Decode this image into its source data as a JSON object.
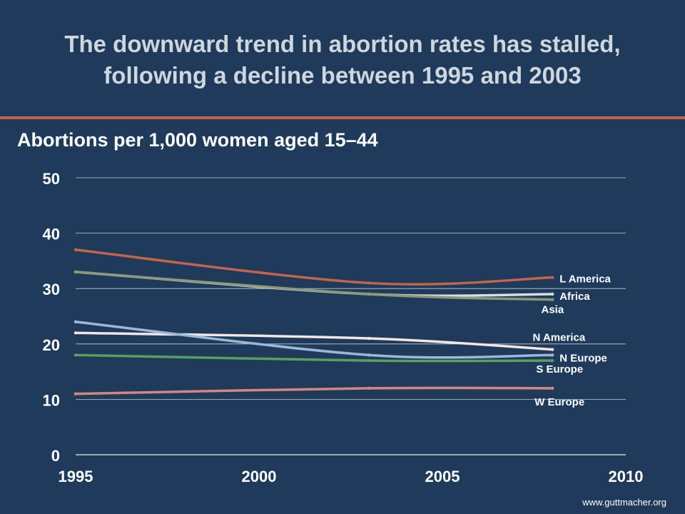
{
  "title": "The downward trend in abortion rates has stalled,\nfollowing a decline between 1995 and 2003",
  "subtitle": "Abortions per 1,000 women aged 15–44",
  "footer": "www.guttmacher.org",
  "colors": {
    "background": "#1f3a5a",
    "accent": "#c8624a"
  },
  "chart_data": {
    "type": "line",
    "xlim": [
      1995,
      2010
    ],
    "ylim": [
      0,
      50
    ],
    "xticks": [
      1995,
      2000,
      2005,
      2010
    ],
    "yticks": [
      0,
      10,
      20,
      30,
      40,
      50
    ],
    "x": [
      1995,
      2003,
      2008
    ],
    "grid": true,
    "series": [
      {
        "name": "L America",
        "values": [
          37,
          31,
          32
        ],
        "color": "#c8624a"
      },
      {
        "name": "Africa",
        "values": [
          33,
          29,
          29
        ],
        "color": "#d8dde4"
      },
      {
        "name": "Asia",
        "values": [
          33,
          29,
          28
        ],
        "color": "#8c9a78"
      },
      {
        "name": "N America",
        "values": [
          22,
          21,
          19
        ],
        "color": "#f2e6e6"
      },
      {
        "name": "N Europe",
        "values": [
          24,
          18,
          18
        ],
        "color": "#9bb8d8"
      },
      {
        "name": "S Europe",
        "values": [
          18,
          17,
          17
        ],
        "color": "#58a060"
      },
      {
        "name": "W Europe",
        "values": [
          11,
          12,
          12
        ],
        "color": "#d48680"
      }
    ]
  }
}
